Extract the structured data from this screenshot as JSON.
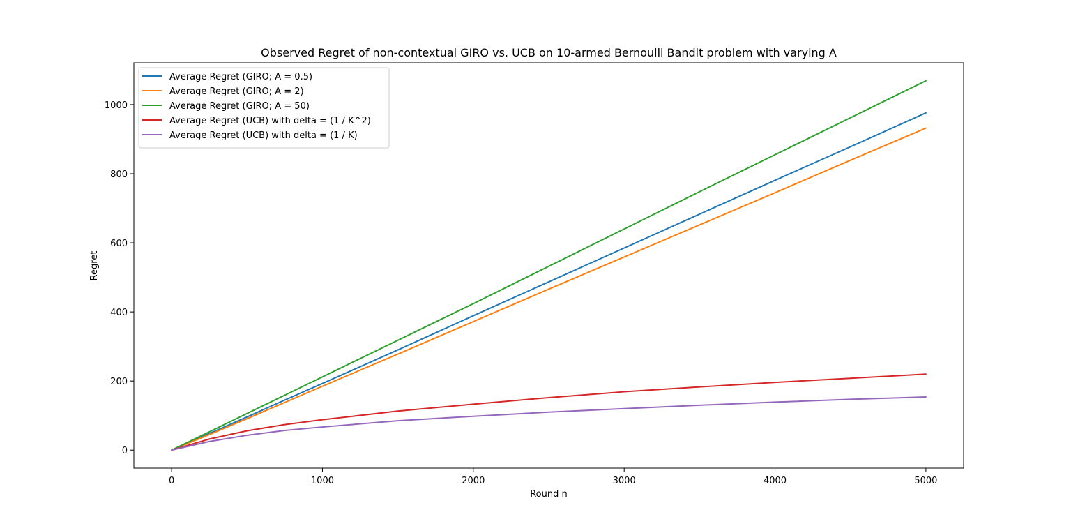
{
  "chart_data": {
    "type": "line",
    "title": "Observed Regret of non-contextual GIRO vs. UCB on 10-armed Bernoulli Bandit problem with varying A",
    "xlabel": "Round n",
    "ylabel": "Regret",
    "xlim": [
      -250,
      5250
    ],
    "ylim": [
      -52,
      1121
    ],
    "xticks": [
      0,
      1000,
      2000,
      3000,
      4000,
      5000
    ],
    "yticks": [
      0,
      200,
      400,
      600,
      800,
      1000
    ],
    "grid": false,
    "legend_position": "top-left",
    "x": [
      0,
      250,
      500,
      750,
      1000,
      1500,
      2000,
      2500,
      3000,
      3500,
      4000,
      4500,
      5000
    ],
    "series": [
      {
        "name": "Average Regret (GIRO; A = 0.5)",
        "color": "#1f77b4",
        "values": [
          0,
          48,
          96,
          145,
          193,
          290,
          389,
          487,
          585,
          683,
          781,
          878,
          976
        ]
      },
      {
        "name": "Average Regret (GIRO; A = 2)",
        "color": "#ff7f0e",
        "values": [
          0,
          45,
          91,
          138,
          185,
          278,
          372,
          466,
          559,
          652,
          745,
          839,
          932
        ]
      },
      {
        "name": "Average Regret (GIRO; A = 50)",
        "color": "#2ca02c",
        "values": [
          0,
          53,
          106,
          159,
          212,
          318,
          424,
          532,
          640,
          748,
          855,
          962,
          1069
        ]
      },
      {
        "name": "Average Regret (UCB) with delta = (1 / K^2)",
        "color": "#d62728",
        "values": [
          0,
          32,
          56,
          74,
          88,
          113,
          133,
          152,
          169,
          183,
          196,
          208,
          220
        ]
      },
      {
        "name": "Average Regret (UCB) with delta = (1 / K)",
        "color": "#9467bd",
        "values": [
          0,
          25,
          43,
          57,
          67,
          85,
          98,
          110,
          120,
          130,
          139,
          147,
          154
        ]
      }
    ]
  }
}
